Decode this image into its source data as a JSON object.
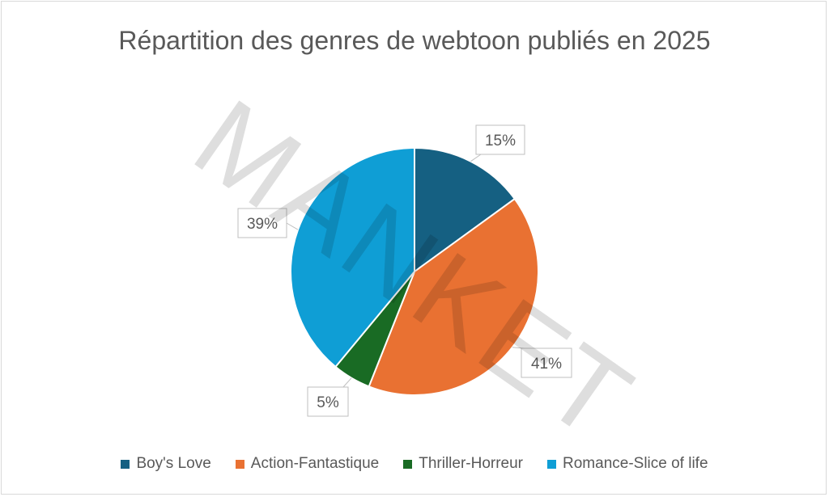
{
  "chart_data": {
    "type": "pie",
    "title": "Répartition des genres de webtoon publiés en 2025",
    "categories": [
      "Boy's Love",
      "Action-Fantastique",
      "Thriller-Horreur",
      "Romance-Slice of life"
    ],
    "values": [
      15,
      41,
      5,
      39
    ],
    "data_labels": [
      "15%",
      "41%",
      "5%",
      "39%"
    ],
    "colors": [
      "#156082",
      "#e97132",
      "#196b24",
      "#0f9ed5"
    ],
    "legend_position": "bottom"
  },
  "watermark": "MANKET"
}
